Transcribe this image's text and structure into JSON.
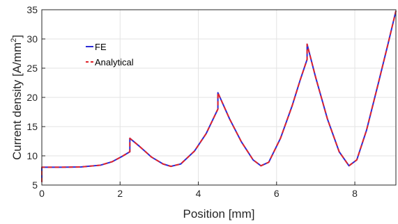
{
  "chart_data": {
    "type": "line",
    "title": "",
    "xlabel": "Position [mm]",
    "ylabel_main": "Current density [A/mm",
    "ylabel_sup": "2",
    "ylabel_end": "]",
    "xlim": [
      0,
      9.05
    ],
    "ylim": [
      5,
      35
    ],
    "xticks": [
      0,
      2,
      4,
      6,
      8
    ],
    "yticks": [
      5,
      10,
      15,
      20,
      25,
      30,
      35
    ],
    "grid": true,
    "legend_position": "top-left",
    "series": [
      {
        "name": "FE",
        "color": "#2b2bd6",
        "style": "solid",
        "points": [
          [
            0,
            5.5
          ],
          [
            0,
            8.05
          ],
          [
            0.5,
            8.05
          ],
          [
            1.0,
            8.1
          ],
          [
            1.5,
            8.4
          ],
          [
            1.8,
            9.0
          ],
          [
            2.05,
            9.9
          ],
          [
            2.25,
            10.7
          ],
          [
            2.25,
            13.0
          ],
          [
            2.5,
            11.6
          ],
          [
            2.8,
            9.8
          ],
          [
            3.1,
            8.6
          ],
          [
            3.3,
            8.2
          ],
          [
            3.55,
            8.6
          ],
          [
            3.9,
            10.8
          ],
          [
            4.2,
            13.8
          ],
          [
            4.5,
            18.0
          ],
          [
            4.5,
            20.8
          ],
          [
            4.8,
            16.3
          ],
          [
            5.1,
            12.4
          ],
          [
            5.4,
            9.3
          ],
          [
            5.6,
            8.3
          ],
          [
            5.8,
            8.9
          ],
          [
            6.1,
            13.0
          ],
          [
            6.4,
            18.6
          ],
          [
            6.6,
            22.9
          ],
          [
            6.78,
            26.5
          ],
          [
            6.78,
            29.1
          ],
          [
            7.0,
            23.4
          ],
          [
            7.3,
            16.3
          ],
          [
            7.6,
            10.7
          ],
          [
            7.85,
            8.3
          ],
          [
            8.05,
            9.3
          ],
          [
            8.3,
            14.4
          ],
          [
            8.6,
            22.4
          ],
          [
            8.85,
            29.2
          ],
          [
            9.05,
            34.8
          ]
        ]
      },
      {
        "name": "Analytical",
        "color": "#e0242b",
        "style": "dashed",
        "points": [
          [
            0,
            5.5
          ],
          [
            0,
            8.05
          ],
          [
            0.5,
            8.05
          ],
          [
            1.0,
            8.1
          ],
          [
            1.5,
            8.4
          ],
          [
            1.8,
            9.0
          ],
          [
            2.05,
            9.9
          ],
          [
            2.25,
            10.7
          ],
          [
            2.25,
            13.0
          ],
          [
            2.5,
            11.6
          ],
          [
            2.8,
            9.8
          ],
          [
            3.1,
            8.6
          ],
          [
            3.3,
            8.2
          ],
          [
            3.55,
            8.6
          ],
          [
            3.9,
            10.8
          ],
          [
            4.2,
            13.8
          ],
          [
            4.5,
            18.0
          ],
          [
            4.5,
            20.8
          ],
          [
            4.8,
            16.3
          ],
          [
            5.1,
            12.4
          ],
          [
            5.4,
            9.3
          ],
          [
            5.6,
            8.3
          ],
          [
            5.8,
            8.9
          ],
          [
            6.1,
            13.0
          ],
          [
            6.4,
            18.6
          ],
          [
            6.6,
            22.9
          ],
          [
            6.78,
            26.5
          ],
          [
            6.78,
            29.1
          ],
          [
            7.0,
            23.4
          ],
          [
            7.3,
            16.3
          ],
          [
            7.6,
            10.7
          ],
          [
            7.85,
            8.3
          ],
          [
            8.05,
            9.3
          ],
          [
            8.3,
            14.4
          ],
          [
            8.6,
            22.4
          ],
          [
            8.85,
            29.2
          ],
          [
            9.05,
            34.8
          ]
        ]
      }
    ]
  }
}
